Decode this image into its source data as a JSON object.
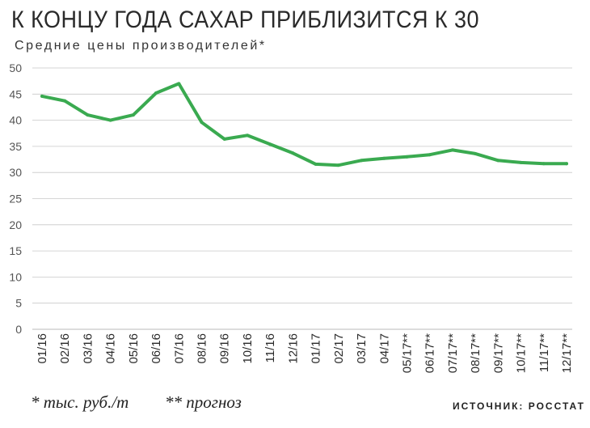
{
  "header": {
    "title": "К КОНЦУ ГОДА САХАР ПРИБЛИЗИТСЯ К 30",
    "subtitle": "Средние цены производителей*"
  },
  "footer": {
    "unit_note": "* тыс. руб./т",
    "forecast_note": "** прогноз",
    "source": "ИСТОЧНИК: РОССТАТ"
  },
  "chart_data": {
    "type": "line",
    "title": "К КОНЦУ ГОДА САХАР ПРИБЛИЗИТСЯ К 30",
    "subtitle": "Средние цены производителей*",
    "xlabel": "",
    "ylabel": "",
    "ylim": [
      0,
      50
    ],
    "yticks": [
      0,
      5,
      10,
      15,
      20,
      25,
      30,
      35,
      40,
      45,
      50
    ],
    "grid": true,
    "line_color": "#3aaa50",
    "grid_color": "#c8c8c8",
    "categories": [
      "01/16",
      "02/16",
      "03/16",
      "04/16",
      "05/16",
      "06/16",
      "07/16",
      "08/16",
      "09/16",
      "10/16",
      "11/16",
      "12/16",
      "01/17",
      "02/17",
      "03/17",
      "04/17",
      "05/17**",
      "06/17**",
      "07/17**",
      "08/17**",
      "09/17**",
      "10/17**",
      "11/17**",
      "12/17**"
    ],
    "values": [
      44.6,
      43.7,
      41.0,
      40.0,
      41.0,
      45.2,
      47.0,
      39.6,
      36.4,
      37.1,
      35.4,
      33.7,
      31.6,
      31.4,
      32.3,
      32.7,
      33.0,
      33.4,
      34.3,
      33.6,
      32.3,
      31.9,
      31.7,
      31.7
    ]
  }
}
